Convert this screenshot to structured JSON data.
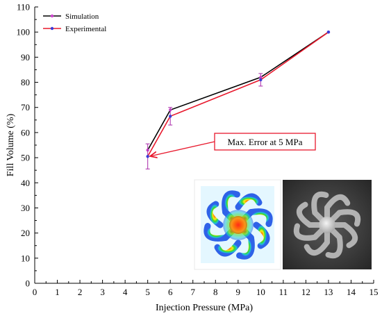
{
  "chart_data": {
    "type": "line",
    "xlabel": "Injection Pressure (MPa)",
    "ylabel": "Fill Volume (%)",
    "xlim": [
      0,
      15
    ],
    "ylim": [
      0,
      110
    ],
    "x_ticks": [
      0,
      1,
      2,
      3,
      4,
      5,
      6,
      7,
      8,
      9,
      10,
      11,
      12,
      13,
      14,
      15
    ],
    "y_ticks": [
      0,
      10,
      20,
      30,
      40,
      50,
      60,
      70,
      80,
      90,
      100,
      110
    ],
    "grid": false,
    "legend_position": "top-left",
    "series": [
      {
        "name": "Simulation",
        "color": "#000000",
        "marker_color": "#cc44cc",
        "x": [
          5,
          6,
          10,
          13
        ],
        "y": [
          53,
          69,
          82,
          100
        ]
      },
      {
        "name": "Experimental",
        "color": "#e8182c",
        "marker_color": "#3b3bd6",
        "x": [
          5,
          6,
          10,
          13
        ],
        "y": [
          50.5,
          66.5,
          81,
          100
        ],
        "error": [
          5,
          3.5,
          2.5,
          0
        ]
      }
    ],
    "annotation": {
      "text": "Max. Error at 5 MPa",
      "target_x": 5,
      "target_y": 50.5,
      "color": "#e8182c"
    }
  },
  "inset_images": [
    {
      "icon": "simulation-fill-contour-flower"
    },
    {
      "icon": "molded-part-photo-flower"
    }
  ]
}
